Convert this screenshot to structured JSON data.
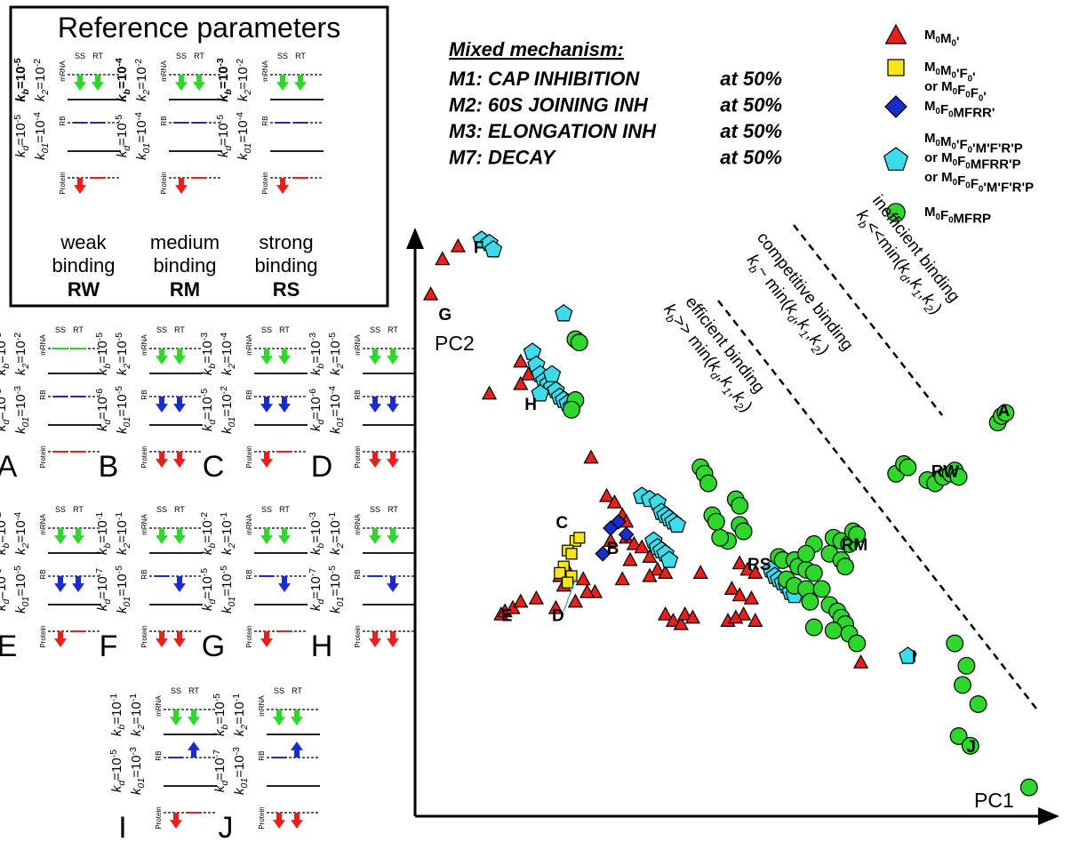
{
  "reference": {
    "title": "Reference parameters",
    "panels": [
      {
        "id": "RW",
        "line1": "weak",
        "line2": "binding",
        "code": "RW",
        "kd": "10",
        "kd_exp": "-5",
        "kb": "10",
        "kb_exp": "-5",
        "k01": "10",
        "k01_exp": "-4",
        "k2": "10",
        "k2_exp": "-2",
        "mrna": "dd",
        "rb": "",
        "protein": "d"
      },
      {
        "id": "RM",
        "line1": "medium",
        "line2": "binding",
        "code": "RM",
        "kd": "10",
        "kd_exp": "-5",
        "kb": "10",
        "kb_exp": "-4",
        "k01": "10",
        "k01_exp": "-4",
        "k2": "10",
        "k2_exp": "-2",
        "mrna": "dd",
        "rb": "",
        "protein": "d"
      },
      {
        "id": "RS",
        "line1": "strong",
        "line2": "binding",
        "code": "RS",
        "kd": "10",
        "kd_exp": "-5",
        "kb": "10",
        "kb_exp": "-3",
        "k01": "10",
        "k01_exp": "-4",
        "k2": "10",
        "k2_exp": "-2",
        "mrna": "dd",
        "rb": "",
        "protein": "d"
      }
    ]
  },
  "panels": [
    {
      "id": "A",
      "kd": "10",
      "kd_exp": "-3",
      "kb": "10",
      "kb_exp": "-3",
      "k01": "10",
      "k01_exp": "-3",
      "k2": "10",
      "k2_exp": "-2",
      "mrna": "",
      "rb": "",
      "protein": ""
    },
    {
      "id": "B",
      "kd": "10",
      "kd_exp": "-6",
      "kb": "10",
      "kb_exp": "-5",
      "k01": "10",
      "k01_exp": "-5",
      "k2": "10",
      "k2_exp": "-5",
      "mrna": "dd",
      "rb": "dd",
      "protein": "dd"
    },
    {
      "id": "C",
      "kd": "10",
      "kd_exp": "-5",
      "kb": "10",
      "kb_exp": "-3",
      "k01": "10",
      "k01_exp": "-2",
      "k2": "10",
      "k2_exp": "-4",
      "mrna": "dd",
      "rb": "dd",
      "protein": "d"
    },
    {
      "id": "D",
      "kd": "10",
      "kd_exp": "-6",
      "kb": "10",
      "kb_exp": "-3",
      "k01": "10",
      "k01_exp": "-4",
      "k2": "10",
      "k2_exp": "-5",
      "mrna": "dd",
      "rb": "dd",
      "protein": "dd"
    },
    {
      "id": "E",
      "kd": "10",
      "kd_exp": "-5",
      "kb": "10",
      "kb_exp": "-2",
      "k01": "10",
      "k01_exp": "-5",
      "k2": "10",
      "k2_exp": "-4",
      "mrna": "dd",
      "rb": "dd",
      "protein": "d"
    },
    {
      "id": "F",
      "kd": "10",
      "kd_exp": "-7",
      "kb": "10",
      "kb_exp": "-1",
      "k01": "10",
      "k01_exp": "-5",
      "k2": "10",
      "k2_exp": "-1",
      "mrna": "dd",
      "rb": "-d",
      "protein": "dd"
    },
    {
      "id": "G",
      "kd": "10",
      "kd_exp": "-5",
      "kb": "10",
      "kb_exp": "-2",
      "k01": "10",
      "k01_exp": "-5",
      "k2": "10",
      "k2_exp": "-1",
      "mrna": "dd",
      "rb": "-d",
      "protein": "d"
    },
    {
      "id": "H",
      "kd": "10",
      "kd_exp": "-7",
      "kb": "10",
      "kb_exp": "-3",
      "k01": "10",
      "k01_exp": "-5",
      "k2": "10",
      "k2_exp": "-1",
      "mrna": "dd",
      "rb": "-d",
      "protein": "dd"
    },
    {
      "id": "I",
      "kd": "10",
      "kd_exp": "-5",
      "kb": "10",
      "kb_exp": "-1",
      "k01": "10",
      "k01_exp": "-3",
      "k2": "10",
      "k2_exp": "-1",
      "mrna": "dd",
      "rb": "-u",
      "protein": "d"
    },
    {
      "id": "J",
      "kd": "10",
      "kd_exp": "-7",
      "kb": "10",
      "kb_exp": "-5",
      "k01": "10",
      "k01_exp": "-3",
      "k2": "10",
      "k2_exp": "-1",
      "mrna": "dd",
      "rb": "-u",
      "protein": "dd"
    }
  ],
  "panel_labels": {
    "ss": "SS",
    "rt": "RT",
    "mrna": "mRNA",
    "rb": "RB",
    "protein": "Protein"
  },
  "mechanism": {
    "title": "Mixed mechanism:",
    "items": [
      {
        "name": "M1: CAP INHIBITION",
        "value": "at 50%"
      },
      {
        "name": "M2: 60S JOINING INH",
        "value": "at 50%"
      },
      {
        "name": "M3: ELONGATION INH",
        "value": "at 50%"
      },
      {
        "name": "M7: DECAY",
        "value": "at 50%"
      }
    ]
  },
  "legend": [
    {
      "shape": "triangle",
      "color": "#e8201c",
      "lines": [
        "M0M0'"
      ]
    },
    {
      "shape": "square",
      "color": "#f5e61a",
      "lines": [
        "M0M0'F0'",
        "or M0F0F0'"
      ]
    },
    {
      "shape": "diamond",
      "color": "#1a2ccc",
      "lines": [
        "M0F0MFRR'"
      ]
    },
    {
      "shape": "pentagon",
      "color": "#3cdcea",
      "lines": [
        "M0M0'F0'M'F'R'P",
        "or M0F0MFRR'P",
        "or M0F0F0'M'F'R'P"
      ]
    },
    {
      "shape": "circle",
      "color": "#2fd62c",
      "lines": [
        "M0F0MFRP"
      ]
    }
  ],
  "chart_data": {
    "type": "scatter",
    "xlabel": "PC1",
    "ylabel": "PC2",
    "regions": [
      {
        "lines": [
          "efficient binding",
          "kb>> min(kd,k1,k2)"
        ]
      },
      {
        "lines": [
          "competitive binding",
          "kb~ min(kd,k1,k2)"
        ]
      },
      {
        "lines": [
          "inefficient binding",
          "kb<<min(kd,k1,k2)"
        ]
      }
    ],
    "point_labels": [
      {
        "text": "A",
        "x": 7.45,
        "y": 6.25
      },
      {
        "text": "RW",
        "x": 6.6,
        "y": 5.3
      },
      {
        "text": "RM",
        "x": 5.45,
        "y": 4.15
      },
      {
        "text": "RS",
        "x": 4.25,
        "y": 3.85
      },
      {
        "text": "B",
        "x": 2.45,
        "y": 4.1
      },
      {
        "text": "C",
        "x": 1.8,
        "y": 4.5
      },
      {
        "text": "D",
        "x": 1.75,
        "y": 3.05
      },
      {
        "text": "E",
        "x": 1.1,
        "y": 3.05
      },
      {
        "text": "F",
        "x": 0.75,
        "y": 8.8
      },
      {
        "text": "G",
        "x": 0.3,
        "y": 7.75
      },
      {
        "text": "H",
        "x": 1.4,
        "y": 6.35
      },
      {
        "text": "I",
        "x": 6.35,
        "y": 2.4
      },
      {
        "text": "J",
        "x": 7.05,
        "y": 1.0
      }
    ],
    "series": [
      {
        "name": "M0M0'",
        "marker": "triangle",
        "color": "#e8201c",
        "points": [
          [
            0.35,
            8.7
          ],
          [
            0.55,
            8.9
          ],
          [
            0.2,
            8.15
          ],
          [
            1.35,
            7.1
          ],
          [
            1.45,
            6.9
          ],
          [
            0.95,
            6.6
          ],
          [
            1.35,
            6.75
          ],
          [
            2.25,
            5.6
          ],
          [
            2.45,
            5.0
          ],
          [
            2.55,
            4.9
          ],
          [
            2.65,
            4.7
          ],
          [
            2.7,
            4.6
          ],
          [
            2.5,
            4.3
          ],
          [
            2.7,
            4.35
          ],
          [
            2.8,
            4.25
          ],
          [
            2.9,
            4.2
          ],
          [
            2.75,
            4.0
          ],
          [
            3.0,
            4.05
          ],
          [
            3.1,
            3.85
          ],
          [
            3.2,
            3.8
          ],
          [
            2.65,
            3.7
          ],
          [
            3.0,
            3.75
          ],
          [
            1.95,
            3.85
          ],
          [
            1.85,
            3.75
          ],
          [
            1.9,
            3.6
          ],
          [
            2.15,
            3.7
          ],
          [
            2.3,
            3.5
          ],
          [
            3.65,
            3.8
          ],
          [
            4.15,
            3.95
          ],
          [
            4.25,
            3.85
          ],
          [
            4.35,
            3.8
          ],
          [
            4.05,
            3.55
          ],
          [
            4.15,
            3.45
          ],
          [
            4.3,
            3.4
          ],
          [
            4.2,
            3.15
          ],
          [
            4.35,
            3.05
          ],
          [
            1.1,
            3.15
          ],
          [
            1.15,
            3.2
          ],
          [
            1.25,
            3.25
          ],
          [
            1.35,
            3.35
          ],
          [
            1.55,
            3.4
          ],
          [
            1.8,
            3.25
          ],
          [
            2.05,
            3.35
          ],
          [
            2.2,
            3.5
          ],
          [
            3.2,
            3.15
          ],
          [
            3.3,
            3.05
          ],
          [
            3.4,
            3.0
          ],
          [
            3.45,
            3.15
          ],
          [
            3.55,
            3.1
          ],
          [
            4.0,
            3.05
          ],
          [
            4.1,
            3.1
          ],
          [
            5.7,
            2.4
          ]
        ]
      },
      {
        "name": "M0M0'F0' or M0F0F0'",
        "marker": "square",
        "color": "#f5e61a",
        "points": [
          [
            2.05,
            4.3
          ],
          [
            2.1,
            4.35
          ],
          [
            1.95,
            4.15
          ],
          [
            2.0,
            4.1
          ],
          [
            1.9,
            3.9
          ],
          [
            1.85,
            3.8
          ],
          [
            2.0,
            3.75
          ],
          [
            1.95,
            3.65
          ]
        ]
      },
      {
        "name": "M0F0MFRR'",
        "marker": "diamond",
        "color": "#1a2ccc",
        "points": [
          [
            2.6,
            4.6
          ],
          [
            2.5,
            4.5
          ],
          [
            2.7,
            4.4
          ],
          [
            2.4,
            4.1
          ]
        ]
      },
      {
        "name": "M0M0'F0'M'F'R'P or M0F0MFRR'P or M0F0F0'M'F'R'P",
        "marker": "pentagon",
        "color": "#3cdcea",
        "points": [
          [
            0.85,
            9.0
          ],
          [
            0.95,
            8.95
          ],
          [
            1.0,
            8.85
          ],
          [
            1.9,
            7.85
          ],
          [
            1.5,
            7.25
          ],
          [
            1.55,
            7.05
          ],
          [
            1.6,
            6.9
          ],
          [
            1.65,
            6.8
          ],
          [
            1.7,
            6.75
          ],
          [
            1.75,
            6.7
          ],
          [
            1.8,
            6.65
          ],
          [
            1.85,
            6.55
          ],
          [
            1.9,
            6.5
          ],
          [
            1.95,
            6.45
          ],
          [
            2.0,
            6.4
          ],
          [
            1.75,
            6.9
          ],
          [
            1.6,
            6.6
          ],
          [
            2.9,
            5.0
          ],
          [
            3.0,
            4.95
          ],
          [
            3.1,
            4.9
          ],
          [
            3.15,
            4.75
          ],
          [
            3.2,
            4.7
          ],
          [
            3.25,
            4.65
          ],
          [
            3.3,
            4.6
          ],
          [
            3.35,
            4.55
          ],
          [
            3.05,
            4.3
          ],
          [
            3.1,
            4.2
          ],
          [
            3.15,
            4.15
          ],
          [
            3.2,
            4.1
          ],
          [
            3.25,
            4.0
          ],
          [
            4.55,
            3.85
          ],
          [
            4.6,
            3.75
          ],
          [
            4.65,
            3.7
          ],
          [
            4.7,
            3.65
          ],
          [
            4.75,
            3.6
          ],
          [
            4.8,
            3.5
          ],
          [
            4.85,
            3.45
          ],
          [
            6.3,
            2.5
          ]
        ]
      },
      {
        "name": "M0F0MFRP",
        "marker": "circle",
        "color": "#2fd62c",
        "points": [
          [
            2.05,
            7.45
          ],
          [
            2.1,
            7.4
          ],
          [
            2.05,
            6.5
          ],
          [
            2.0,
            6.35
          ],
          [
            3.65,
            5.45
          ],
          [
            3.7,
            5.35
          ],
          [
            3.75,
            5.2
          ],
          [
            4.1,
            4.95
          ],
          [
            4.15,
            4.85
          ],
          [
            3.8,
            4.7
          ],
          [
            3.85,
            4.6
          ],
          [
            4.15,
            4.55
          ],
          [
            4.2,
            4.45
          ],
          [
            4.0,
            4.3
          ],
          [
            3.9,
            4.35
          ],
          [
            4.65,
            4.05
          ],
          [
            4.7,
            4.0
          ],
          [
            4.85,
            4.0
          ],
          [
            4.9,
            3.9
          ],
          [
            5.0,
            3.85
          ],
          [
            5.1,
            3.8
          ],
          [
            4.75,
            3.7
          ],
          [
            4.85,
            3.6
          ],
          [
            5.0,
            3.55
          ],
          [
            5.2,
            3.55
          ],
          [
            5.05,
            3.35
          ],
          [
            5.3,
            3.3
          ],
          [
            5.4,
            3.2
          ],
          [
            5.45,
            3.1
          ],
          [
            5.5,
            3.0
          ],
          [
            5.1,
            2.95
          ],
          [
            5.35,
            2.9
          ],
          [
            5.55,
            2.85
          ],
          [
            5.65,
            2.7
          ],
          [
            5.35,
            4.35
          ],
          [
            5.45,
            4.3
          ],
          [
            5.55,
            4.25
          ],
          [
            5.6,
            4.45
          ],
          [
            5.65,
            4.4
          ],
          [
            5.3,
            4.1
          ],
          [
            5.45,
            4.0
          ],
          [
            5.5,
            3.9
          ],
          [
            5.1,
            4.25
          ],
          [
            5.0,
            4.1
          ],
          [
            6.15,
            5.35
          ],
          [
            6.25,
            5.5
          ],
          [
            6.3,
            5.45
          ],
          [
            6.55,
            5.25
          ],
          [
            6.65,
            5.2
          ],
          [
            6.75,
            5.3
          ],
          [
            6.85,
            5.35
          ],
          [
            6.9,
            5.4
          ],
          [
            6.95,
            5.3
          ],
          [
            7.45,
            6.15
          ],
          [
            7.5,
            6.25
          ],
          [
            7.55,
            6.3
          ],
          [
            6.9,
            2.7
          ],
          [
            7.05,
            2.35
          ],
          [
            7.0,
            2.05
          ],
          [
            7.2,
            1.75
          ],
          [
            6.95,
            1.25
          ],
          [
            7.1,
            1.1
          ],
          [
            7.85,
            0.45
          ]
        ]
      }
    ]
  }
}
